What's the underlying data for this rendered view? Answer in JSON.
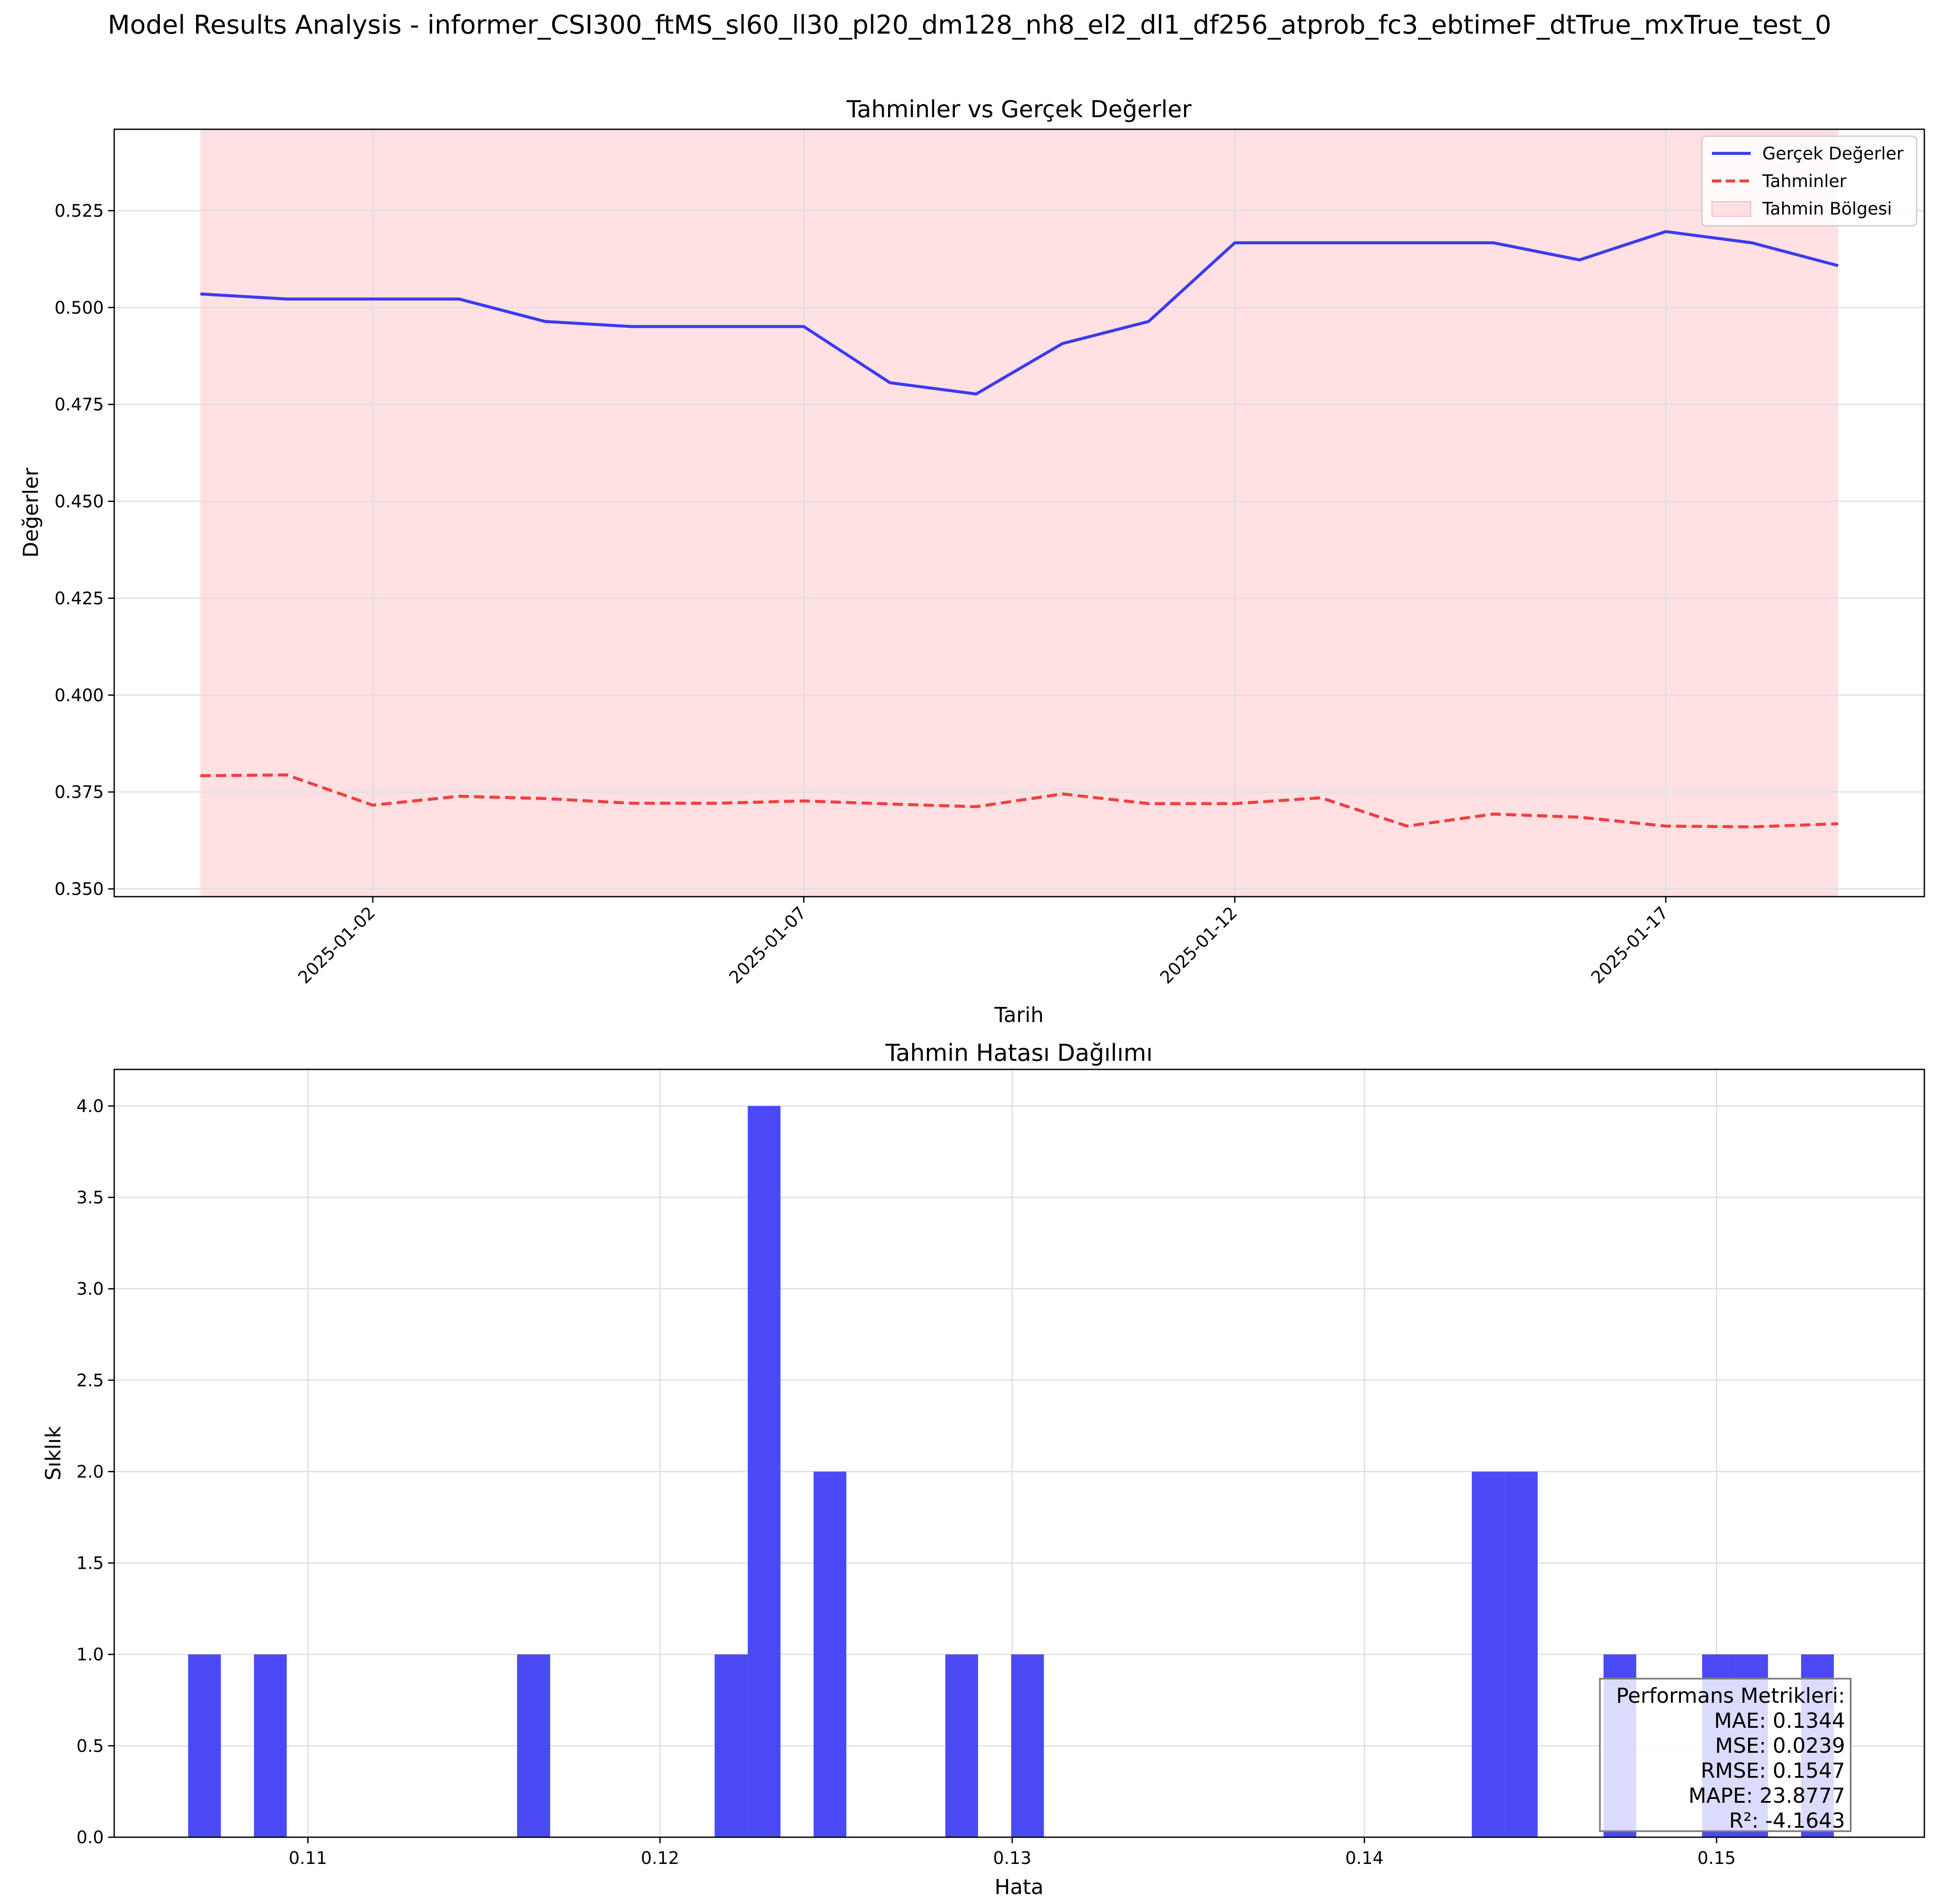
{
  "figure_title": "Model Results Analysis - informer_CSI300_ftMS_sl60_ll30_pl20_dm128_nh8_el2_dl1_df256_atprob_fc3_ebtimeF_dtTrue_mxTrue_test_0",
  "colors": {
    "actual": "#3b3bf0",
    "predicted": "#f04040",
    "region": "#ffe0e3",
    "bars": "#4a4af5",
    "grid": "#e0e0e0"
  },
  "chart_data": [
    {
      "type": "line",
      "title": "Tahminler vs Gerçek Değerler",
      "xlabel": "Tarih",
      "ylabel": "Değerler",
      "x": [
        "2024-12-31",
        "2025-01-01",
        "2025-01-02",
        "2025-01-03",
        "2025-01-04",
        "2025-01-05",
        "2025-01-06",
        "2025-01-07",
        "2025-01-08",
        "2025-01-09",
        "2025-01-10",
        "2025-01-11",
        "2025-01-12",
        "2025-01-13",
        "2025-01-14",
        "2025-01-15",
        "2025-01-16",
        "2025-01-17",
        "2025-01-18",
        "2025-01-19"
      ],
      "xticks": [
        "2025-01-02",
        "2025-01-07",
        "2025-01-12",
        "2025-01-17"
      ],
      "xlim": [
        "2024-12-30",
        "2025-01-20"
      ],
      "ylim": [
        0.348,
        0.546
      ],
      "yticks": [
        "0.350",
        "0.375",
        "0.400",
        "0.425",
        "0.450",
        "0.475",
        "0.500",
        "0.525"
      ],
      "grid": true,
      "legend": "top-right",
      "series": [
        {
          "name": "Gerçek Değerler",
          "style": "solid",
          "values": [
            0.5035,
            0.5022,
            0.5022,
            0.5022,
            0.4964,
            0.4951,
            0.4951,
            0.4951,
            0.4806,
            0.4777,
            0.4907,
            0.4964,
            0.5167,
            0.5167,
            0.5167,
            0.5167,
            0.5123,
            0.5196,
            0.5167,
            0.5108
          ]
        },
        {
          "name": "Tahminler",
          "style": "dashed",
          "values": [
            0.3792,
            0.3794,
            0.3716,
            0.3739,
            0.3733,
            0.3721,
            0.3721,
            0.3727,
            0.3719,
            0.3712,
            0.3745,
            0.372,
            0.372,
            0.3735,
            0.3662,
            0.3693,
            0.3685,
            0.3662,
            0.366,
            0.3668
          ]
        }
      ],
      "region_label": "Tahmin Bölgesi",
      "region": [
        "2024-12-31",
        "2025-01-19"
      ]
    },
    {
      "type": "bar",
      "subtype": "histogram",
      "title": "Tahmin Hatası Dağılımı",
      "xlabel": "Hata",
      "ylabel": "Sıklık",
      "xlim": [
        0.1045,
        0.1559
      ],
      "ylim": [
        0,
        4.2
      ],
      "xticks": [
        "0.11",
        "0.12",
        "0.13",
        "0.14",
        "0.15"
      ],
      "yticks": [
        "0.0",
        "0.5",
        "1.0",
        "1.5",
        "2.0",
        "2.5",
        "3.0",
        "3.5",
        "4.0"
      ],
      "grid": true,
      "bins": [
        {
          "start": 0.1066,
          "end": 0.10753,
          "count": 1
        },
        {
          "start": 0.10847,
          "end": 0.1094,
          "count": 1
        },
        {
          "start": 0.11594,
          "end": 0.11688,
          "count": 1
        },
        {
          "start": 0.12155,
          "end": 0.12249,
          "count": 1
        },
        {
          "start": 0.12249,
          "end": 0.12342,
          "count": 4
        },
        {
          "start": 0.12436,
          "end": 0.12529,
          "count": 2
        },
        {
          "start": 0.1281,
          "end": 0.12903,
          "count": 1
        },
        {
          "start": 0.12997,
          "end": 0.1309,
          "count": 1
        },
        {
          "start": 0.14305,
          "end": 0.14398,
          "count": 2
        },
        {
          "start": 0.14398,
          "end": 0.14492,
          "count": 2
        },
        {
          "start": 0.14679,
          "end": 0.14772,
          "count": 1
        },
        {
          "start": 0.14959,
          "end": 0.15053,
          "count": 1
        },
        {
          "start": 0.15053,
          "end": 0.15146,
          "count": 1
        },
        {
          "start": 0.1524,
          "end": 0.15333,
          "count": 1
        }
      ],
      "metrics_box": {
        "title": "Performans Metrikleri:",
        "lines": [
          "MAE: 0.1344",
          "MSE: 0.0239",
          "RMSE: 0.1547",
          "MAPE: 23.8777",
          "R²: -4.1643"
        ]
      }
    }
  ]
}
